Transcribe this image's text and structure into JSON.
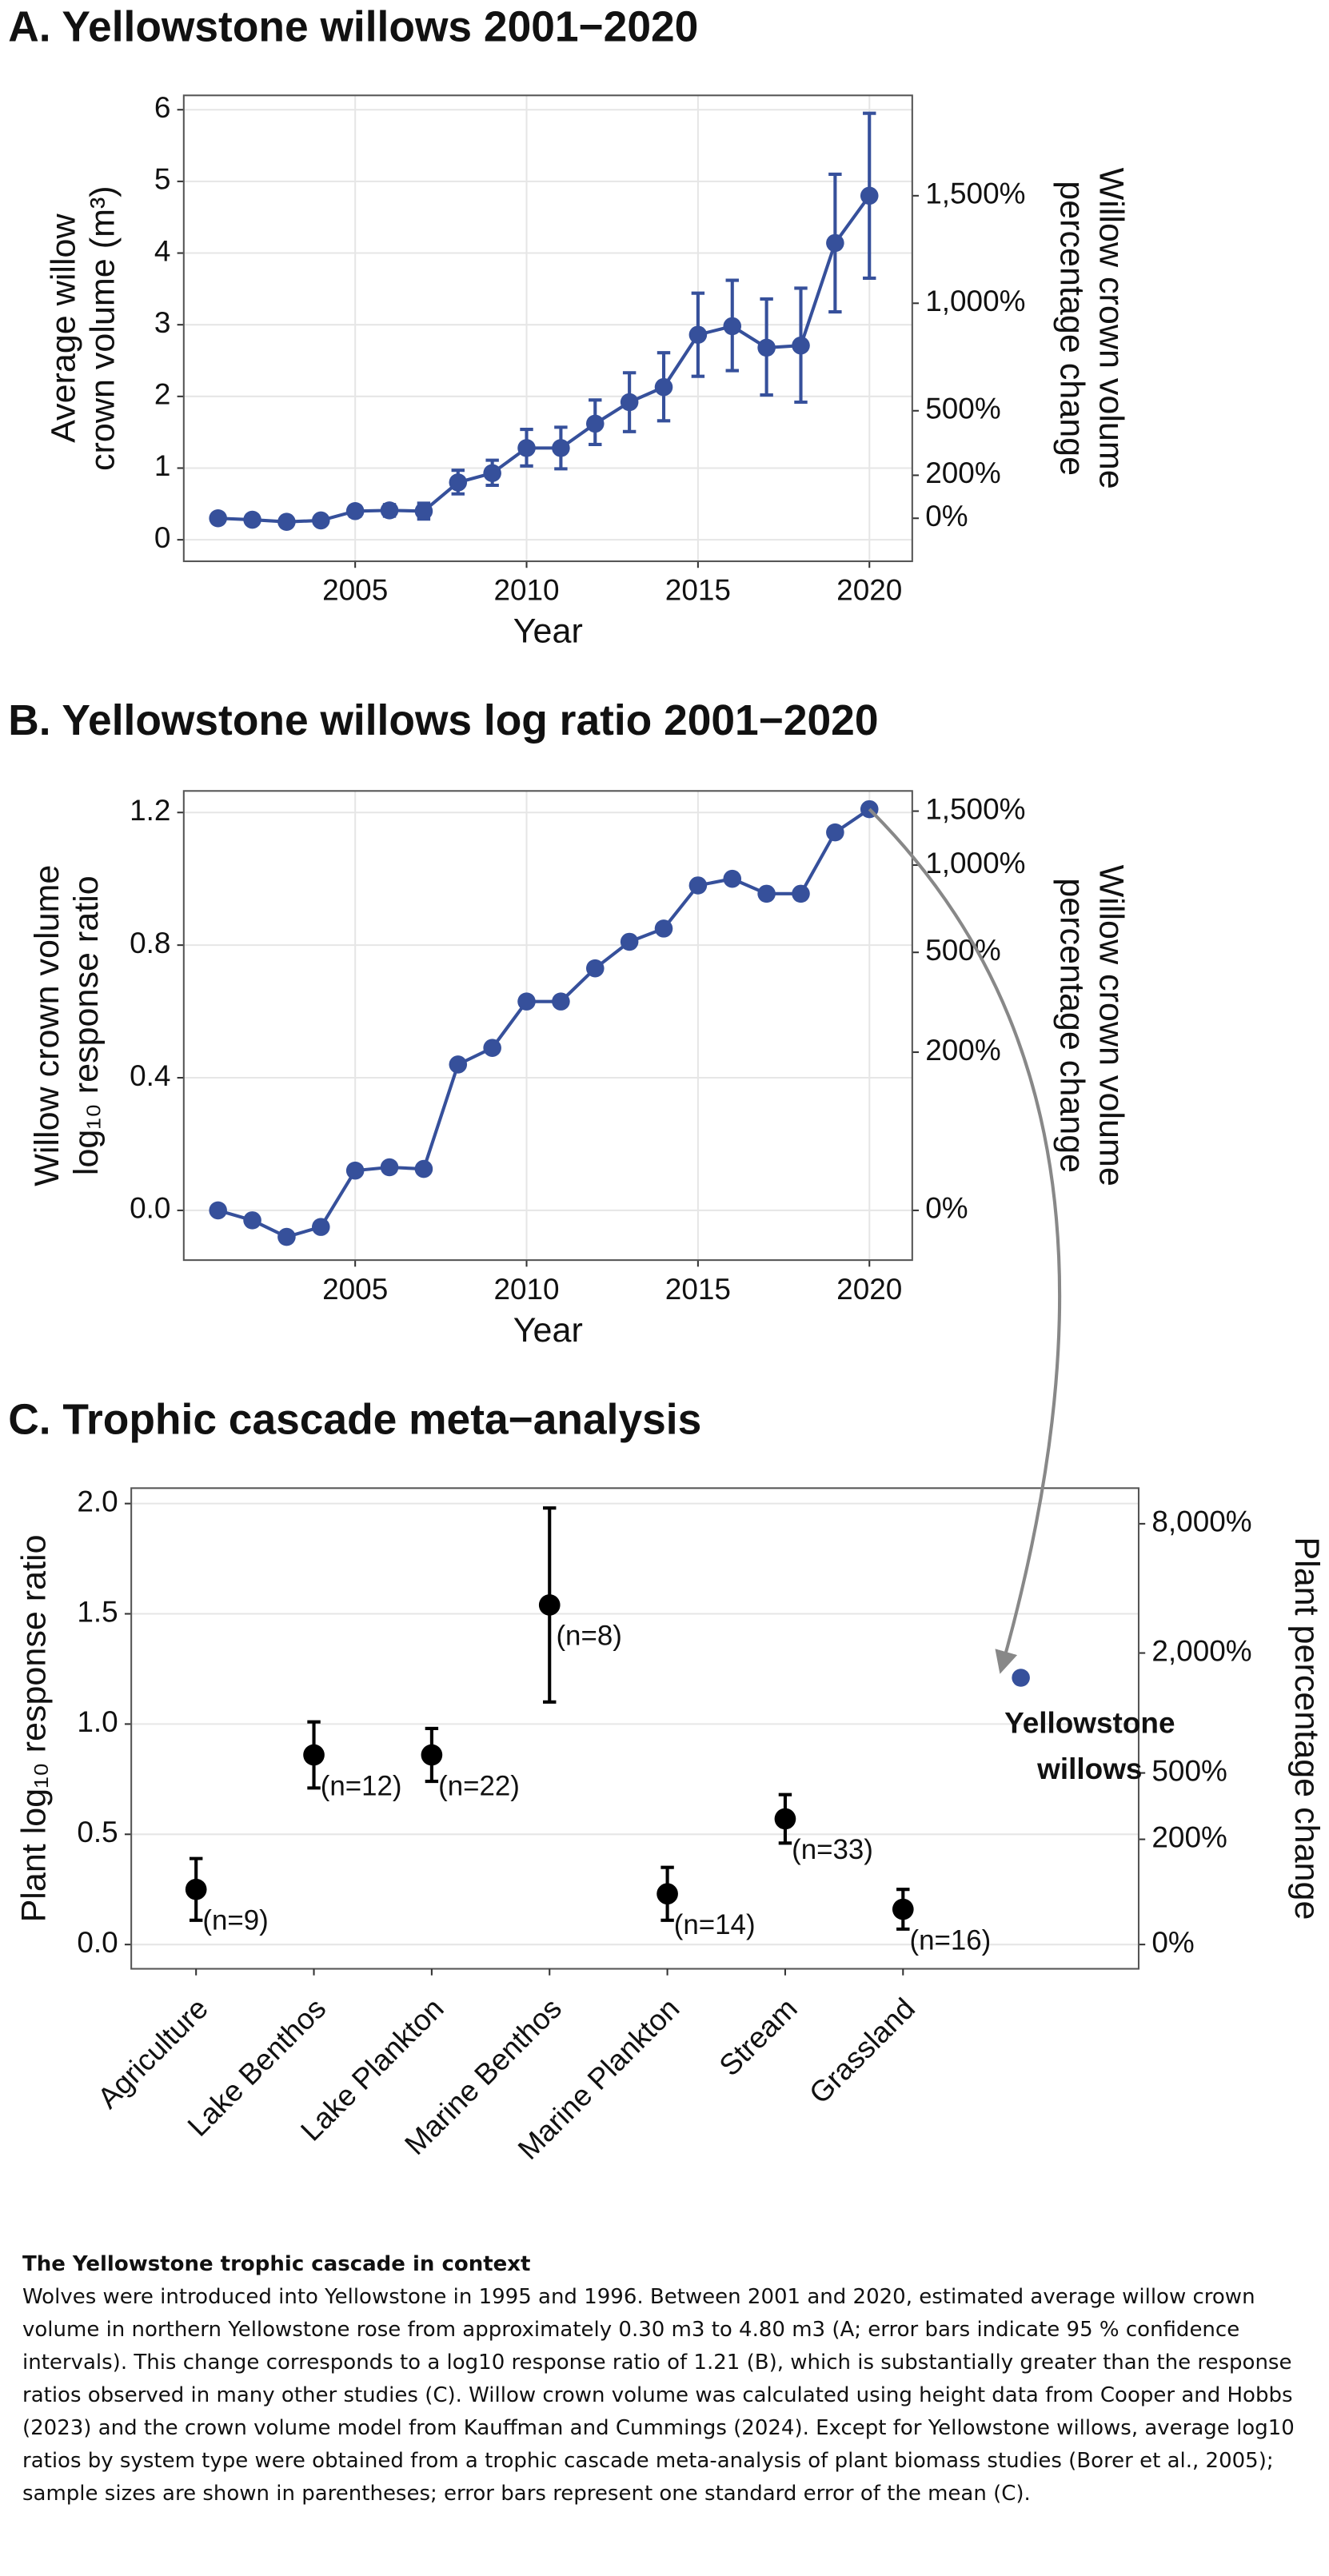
{
  "chart_data": [
    {
      "type": "line",
      "title": "A. Yellowstone willows 2001−2020",
      "xlabel": "Year",
      "ylabel": [
        "Average willow",
        "crown volume (m³)"
      ],
      "y2label": [
        "Willow crown volume",
        "percentage change"
      ],
      "x": [
        2001,
        2002,
        2003,
        2004,
        2005,
        2006,
        2007,
        2008,
        2009,
        2010,
        2011,
        2012,
        2013,
        2014,
        2015,
        2016,
        2017,
        2018,
        2019,
        2020
      ],
      "values": [
        0.3,
        0.28,
        0.25,
        0.27,
        0.4,
        0.41,
        0.4,
        0.8,
        0.93,
        1.28,
        1.28,
        1.62,
        1.92,
        2.13,
        2.86,
        2.98,
        2.68,
        2.71,
        4.14,
        4.8
      ],
      "ci_low": [
        0.27,
        0.25,
        0.22,
        0.24,
        0.33,
        0.33,
        0.29,
        0.64,
        0.76,
        1.03,
        0.99,
        1.33,
        1.51,
        1.66,
        2.28,
        2.36,
        2.02,
        1.92,
        3.18,
        3.65
      ],
      "ci_high": [
        0.33,
        0.31,
        0.28,
        0.3,
        0.47,
        0.49,
        0.51,
        0.97,
        1.11,
        1.54,
        1.57,
        1.95,
        2.33,
        2.61,
        3.44,
        3.62,
        3.36,
        3.51,
        5.1,
        5.95
      ],
      "color": "#36509b",
      "xlim": [
        2000,
        2021.25
      ],
      "xticks": [
        2005,
        2010,
        2015,
        2020
      ],
      "ylim": [
        -0.3,
        6.2
      ],
      "yticks": [
        0,
        1,
        2,
        3,
        4,
        5,
        6
      ],
      "y2lim": [
        -200,
        1966.7
      ],
      "y2ticks": [
        {
          "value": 0,
          "label": "0%"
        },
        {
          "value": 200,
          "label": "200%"
        },
        {
          "value": 500,
          "label": "500%"
        },
        {
          "value": 1000,
          "label": "1,000%"
        },
        {
          "value": 1500,
          "label": "1,500%"
        }
      ],
      "grid": true
    },
    {
      "type": "line",
      "title": "B. Yellowstone willows log ratio 2001−2020",
      "xlabel": "Year",
      "ylabel": [
        "Willow crown volume",
        "log₁₀ response ratio"
      ],
      "y2label": [
        "Willow crown volume",
        "percentage change"
      ],
      "x": [
        2001,
        2002,
        2003,
        2004,
        2005,
        2006,
        2007,
        2008,
        2009,
        2010,
        2011,
        2012,
        2013,
        2014,
        2015,
        2016,
        2017,
        2018,
        2019,
        2020
      ],
      "values": [
        0.0,
        -0.03,
        -0.08,
        -0.05,
        0.12,
        0.13,
        0.125,
        0.44,
        0.49,
        0.63,
        0.63,
        0.73,
        0.81,
        0.85,
        0.98,
        1.0,
        0.955,
        0.955,
        1.14,
        1.21
      ],
      "color": "#36509b",
      "xlim": [
        2000,
        2021.25
      ],
      "xticks": [
        2005,
        2010,
        2015,
        2020
      ],
      "ylim": [
        -0.15,
        1.265
      ],
      "yticks": [
        {
          "value": 0,
          "label": "0.0"
        },
        0.4,
        0.8,
        1.2
      ],
      "y2scale": "log-ratio",
      "y2lim": [
        -29.2,
        1740.8
      ],
      "y2ticks": [
        {
          "value": 0,
          "label": "0%"
        },
        {
          "value": 200,
          "label": "200%"
        },
        {
          "value": 500,
          "label": "500%"
        },
        {
          "value": 1000,
          "label": "1,000%"
        },
        {
          "value": 1500,
          "label": "1,500%"
        }
      ],
      "grid": true
    },
    {
      "type": "dot",
      "title": "C. Trophic cascade meta−analysis",
      "ylabel": [
        "Plant log₁₀ response ratio"
      ],
      "y2label": [
        "Plant percentage change"
      ],
      "categories": [
        "Agriculture",
        "Lake Benthos",
        "Lake Plankton",
        "Marine Benthos",
        "Marine Plankton",
        "Stream",
        "Grassland",
        null
      ],
      "values": [
        0.25,
        0.86,
        0.86,
        1.54,
        0.23,
        0.57,
        0.16,
        1.21
      ],
      "errors": [
        0.14,
        0.15,
        0.12,
        0.44,
        0.12,
        0.11,
        0.09,
        null
      ],
      "n_labels": [
        "(n=9)",
        "(n=12)",
        "(n=22)",
        "(n=8)",
        "(n=14)",
        "(n=33)",
        "(n=16)",
        null
      ],
      "point_colors": [
        "#000000",
        "#000000",
        "#000000",
        "#000000",
        "#000000",
        "#000000",
        "#000000",
        "#36509b"
      ],
      "annotation": [
        "Yellowstone",
        "willows"
      ],
      "ylim": [
        -0.11,
        2.07
      ],
      "yticks": [
        {
          "value": 0,
          "label": "0.0"
        },
        0.5,
        {
          "value": 1,
          "label": "1.0"
        },
        1.5,
        {
          "value": 2,
          "label": "2.0"
        }
      ],
      "y2scale": "log-ratio",
      "y2lim": [
        -22.4,
        11650
      ],
      "y2ticks": [
        {
          "value": 0,
          "label": "0%"
        },
        {
          "value": 200,
          "label": "200%"
        },
        {
          "value": 500,
          "label": "500%"
        },
        {
          "value": 2000,
          "label": "2,000%"
        },
        {
          "value": 8000,
          "label": "8,000%"
        }
      ],
      "grid": true
    }
  ],
  "caption": {
    "title": "The Yellowstone trophic cascade in context",
    "text": "Wolves were introduced into Yellowstone in 1995 and 1996. Between 2001 and 2020, estimated average willow crown volume in northern Yellowstone rose from approximately 0.30 m3 to 4.80 m3 (A; error bars indicate 95 % confidence intervals). This change corresponds to a log10 response ratio of 1.21 (B), which is substantially greater than the response ratios observed in many other studies (C). Willow crown volume was calculated using height data from Cooper and Hobbs (2023) and the crown volume model from Kauffman and Cummings (2024). Except for Yellowstone willows, average log10 ratios by system type were obtained from a trophic cascade meta-analysis of plant biomass studies (Borer et al., 2005); sample sizes are shown in parentheses; error bars represent one standard error of the mean (C)."
  }
}
